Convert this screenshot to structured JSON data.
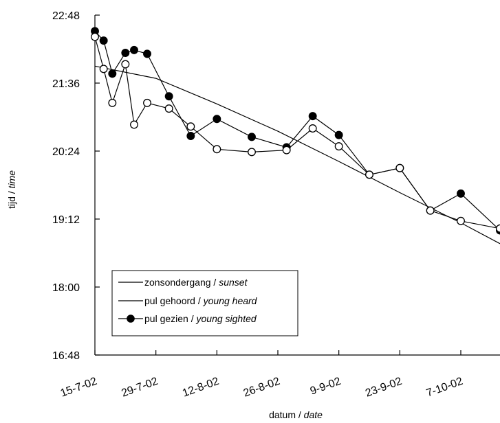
{
  "chart_data": {
    "type": "line",
    "title": "",
    "xlabel": {
      "main": "datum",
      "sep": " / ",
      "italic": "date"
    },
    "ylabel": {
      "main": "tijd",
      "sep": " / ",
      "italic": "time"
    },
    "x_ticks": [
      "15-7-02",
      "29-7-02",
      "12-8-02",
      "26-8-02",
      "9-9-02",
      "23-9-02",
      "7-10-02"
    ],
    "y_ticks": [
      "16:48",
      "18:00",
      "19:12",
      "20:24",
      "21:36",
      "22:48"
    ],
    "xlim": [
      "2002-07-15",
      "2002-10-16"
    ],
    "ylim": [
      "16:48",
      "22:48"
    ],
    "grid": false,
    "legend_position": "bottom-left",
    "series": [
      {
        "name": "zonsondergang",
        "name_en": "sunset",
        "marker": "none",
        "points": [
          [
            "2002-07-15",
            "21:54"
          ],
          [
            "2002-07-29",
            "21:41"
          ],
          [
            "2002-08-12",
            "21:14"
          ],
          [
            "2002-08-26",
            "20:45"
          ],
          [
            "2002-09-09",
            "20:13"
          ],
          [
            "2002-09-23",
            "19:40"
          ],
          [
            "2002-10-07",
            "19:08"
          ],
          [
            "2002-10-16",
            "18:46"
          ]
        ]
      },
      {
        "name": "pul gehoord",
        "name_en": "young heard",
        "marker": "open-circle",
        "points": [
          [
            "2002-07-15",
            "22:25"
          ],
          [
            "2002-07-17",
            "21:51"
          ],
          [
            "2002-07-19",
            "21:15"
          ],
          [
            "2002-07-22",
            "21:56"
          ],
          [
            "2002-07-24",
            "20:52"
          ],
          [
            "2002-07-27",
            "21:15"
          ],
          [
            "2002-08-01",
            "21:09"
          ],
          [
            "2002-08-06",
            "20:50"
          ],
          [
            "2002-08-12",
            "20:26"
          ],
          [
            "2002-08-20",
            "20:23"
          ],
          [
            "2002-08-28",
            "20:25"
          ],
          [
            "2002-09-03",
            "20:48"
          ],
          [
            "2002-09-09",
            "20:29"
          ],
          [
            "2002-09-16",
            "19:59"
          ],
          [
            "2002-09-23",
            "20:06"
          ],
          [
            "2002-09-30",
            "19:21"
          ],
          [
            "2002-10-07",
            "19:10"
          ],
          [
            "2002-10-16",
            "19:02"
          ]
        ]
      },
      {
        "name": "pul gezien",
        "name_en": "young sighted",
        "marker": "filled-circle",
        "points": [
          [
            "2002-07-15",
            "22:31"
          ],
          [
            "2002-07-17",
            "22:21"
          ],
          [
            "2002-07-19",
            "21:46"
          ],
          [
            "2002-07-22",
            "22:08"
          ],
          [
            "2002-07-24",
            "22:11"
          ],
          [
            "2002-07-27",
            "22:07"
          ],
          [
            "2002-08-01",
            "21:22"
          ],
          [
            "2002-08-06",
            "20:40"
          ],
          [
            "2002-08-12",
            "20:58"
          ],
          [
            "2002-08-20",
            "20:39"
          ],
          [
            "2002-08-28",
            "20:28"
          ],
          [
            "2002-09-03",
            "21:01"
          ],
          [
            "2002-09-09",
            "20:41"
          ],
          [
            "2002-09-16",
            "19:59"
          ],
          [
            "2002-09-23",
            "20:06"
          ],
          [
            "2002-09-30",
            "19:21"
          ],
          [
            "2002-10-07",
            "19:39"
          ],
          [
            "2002-10-16",
            "19:00"
          ]
        ]
      }
    ]
  }
}
